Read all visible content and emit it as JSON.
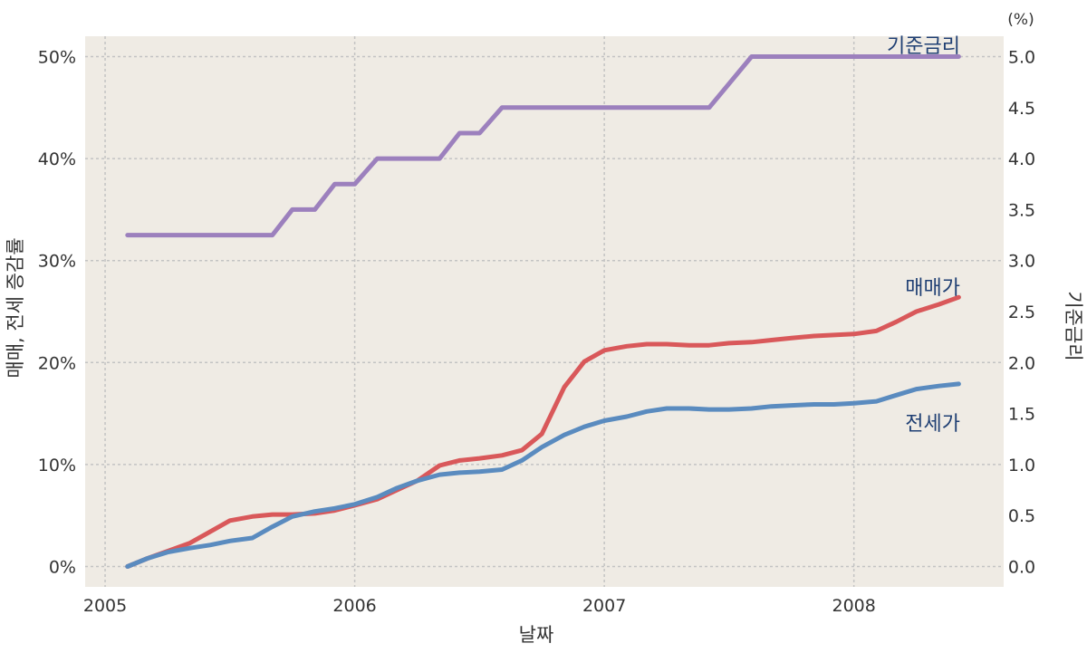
{
  "chart_data": {
    "type": "line",
    "xlabel": "날짜",
    "ylabel_left": "매매, 전세 증감률",
    "ylabel_right": "기준금리",
    "right_unit": "(%)",
    "xlim": [
      2004.92,
      2008.6
    ],
    "ylim_left": [
      -2,
      52
    ],
    "ylim_right": [
      -0.2,
      5.2
    ],
    "x_ticks": [
      {
        "value": 2005,
        "label": "2005"
      },
      {
        "value": 2006,
        "label": "2006"
      },
      {
        "value": 2007,
        "label": "2007"
      },
      {
        "value": 2008,
        "label": "2008"
      }
    ],
    "y_left_ticks": [
      {
        "value": 0,
        "label": "0%"
      },
      {
        "value": 10,
        "label": "10%"
      },
      {
        "value": 20,
        "label": "20%"
      },
      {
        "value": 30,
        "label": "30%"
      },
      {
        "value": 40,
        "label": "40%"
      },
      {
        "value": 50,
        "label": "50%"
      }
    ],
    "y_right_ticks": [
      {
        "value": 0.0,
        "label": "0.0"
      },
      {
        "value": 0.5,
        "label": "0.5"
      },
      {
        "value": 1.0,
        "label": "1.0"
      },
      {
        "value": 1.5,
        "label": "1.5"
      },
      {
        "value": 2.0,
        "label": "2.0"
      },
      {
        "value": 2.5,
        "label": "2.5"
      },
      {
        "value": 3.0,
        "label": "3.0"
      },
      {
        "value": 3.5,
        "label": "3.5"
      },
      {
        "value": 4.0,
        "label": "4.0"
      },
      {
        "value": 4.5,
        "label": "4.5"
      },
      {
        "value": 5.0,
        "label": "5.0"
      }
    ],
    "grid": true,
    "series": [
      {
        "name": "기준금리",
        "axis": "right",
        "color": "#9c80bd",
        "points": [
          [
            2005.09,
            3.25
          ],
          [
            2005.67,
            3.25
          ],
          [
            2005.75,
            3.5
          ],
          [
            2005.84,
            3.5
          ],
          [
            2005.92,
            3.75
          ],
          [
            2006.0,
            3.75
          ],
          [
            2006.09,
            4.0
          ],
          [
            2006.34,
            4.0
          ],
          [
            2006.42,
            4.25
          ],
          [
            2006.5,
            4.25
          ],
          [
            2006.59,
            4.5
          ],
          [
            2007.42,
            4.5
          ],
          [
            2007.59,
            5.0
          ],
          [
            2008.42,
            5.0
          ]
        ]
      },
      {
        "name": "매매가",
        "axis": "left",
        "color": "#d9585a",
        "points": [
          [
            2005.09,
            0.0
          ],
          [
            2005.17,
            0.8
          ],
          [
            2005.25,
            1.5
          ],
          [
            2005.34,
            2.3
          ],
          [
            2005.42,
            3.4
          ],
          [
            2005.5,
            4.5
          ],
          [
            2005.59,
            4.9
          ],
          [
            2005.67,
            5.1
          ],
          [
            2005.75,
            5.1
          ],
          [
            2005.84,
            5.2
          ],
          [
            2005.92,
            5.5
          ],
          [
            2006.0,
            6.0
          ],
          [
            2006.09,
            6.6
          ],
          [
            2006.17,
            7.5
          ],
          [
            2006.25,
            8.4
          ],
          [
            2006.34,
            9.9
          ],
          [
            2006.42,
            10.4
          ],
          [
            2006.5,
            10.6
          ],
          [
            2006.59,
            10.9
          ],
          [
            2006.67,
            11.4
          ],
          [
            2006.75,
            13.0
          ],
          [
            2006.84,
            17.6
          ],
          [
            2006.92,
            20.1
          ],
          [
            2007.0,
            21.2
          ],
          [
            2007.09,
            21.6
          ],
          [
            2007.17,
            21.8
          ],
          [
            2007.25,
            21.8
          ],
          [
            2007.34,
            21.7
          ],
          [
            2007.42,
            21.7
          ],
          [
            2007.5,
            21.9
          ],
          [
            2007.59,
            22.0
          ],
          [
            2007.67,
            22.2
          ],
          [
            2007.75,
            22.4
          ],
          [
            2007.84,
            22.6
          ],
          [
            2007.92,
            22.7
          ],
          [
            2008.0,
            22.8
          ],
          [
            2008.09,
            23.1
          ],
          [
            2008.17,
            24.0
          ],
          [
            2008.25,
            25.0
          ],
          [
            2008.34,
            25.7
          ],
          [
            2008.42,
            26.4
          ]
        ]
      },
      {
        "name": "전세가",
        "axis": "left",
        "color": "#5a8bbf",
        "points": [
          [
            2005.09,
            0.0
          ],
          [
            2005.17,
            0.8
          ],
          [
            2005.25,
            1.4
          ],
          [
            2005.34,
            1.8
          ],
          [
            2005.42,
            2.1
          ],
          [
            2005.5,
            2.5
          ],
          [
            2005.59,
            2.8
          ],
          [
            2005.67,
            3.9
          ],
          [
            2005.75,
            4.9
          ],
          [
            2005.84,
            5.4
          ],
          [
            2005.92,
            5.7
          ],
          [
            2006.0,
            6.1
          ],
          [
            2006.09,
            6.8
          ],
          [
            2006.17,
            7.7
          ],
          [
            2006.25,
            8.4
          ],
          [
            2006.34,
            9.0
          ],
          [
            2006.42,
            9.2
          ],
          [
            2006.5,
            9.3
          ],
          [
            2006.59,
            9.5
          ],
          [
            2006.67,
            10.4
          ],
          [
            2006.75,
            11.7
          ],
          [
            2006.84,
            12.9
          ],
          [
            2006.92,
            13.7
          ],
          [
            2007.0,
            14.3
          ],
          [
            2007.09,
            14.7
          ],
          [
            2007.17,
            15.2
          ],
          [
            2007.25,
            15.5
          ],
          [
            2007.34,
            15.5
          ],
          [
            2007.42,
            15.4
          ],
          [
            2007.5,
            15.4
          ],
          [
            2007.59,
            15.5
          ],
          [
            2007.67,
            15.7
          ],
          [
            2007.75,
            15.8
          ],
          [
            2007.84,
            15.9
          ],
          [
            2007.92,
            15.9
          ],
          [
            2008.0,
            16.0
          ],
          [
            2008.09,
            16.2
          ],
          [
            2008.17,
            16.8
          ],
          [
            2008.25,
            17.4
          ],
          [
            2008.34,
            17.7
          ],
          [
            2008.42,
            17.9
          ]
        ]
      }
    ]
  }
}
